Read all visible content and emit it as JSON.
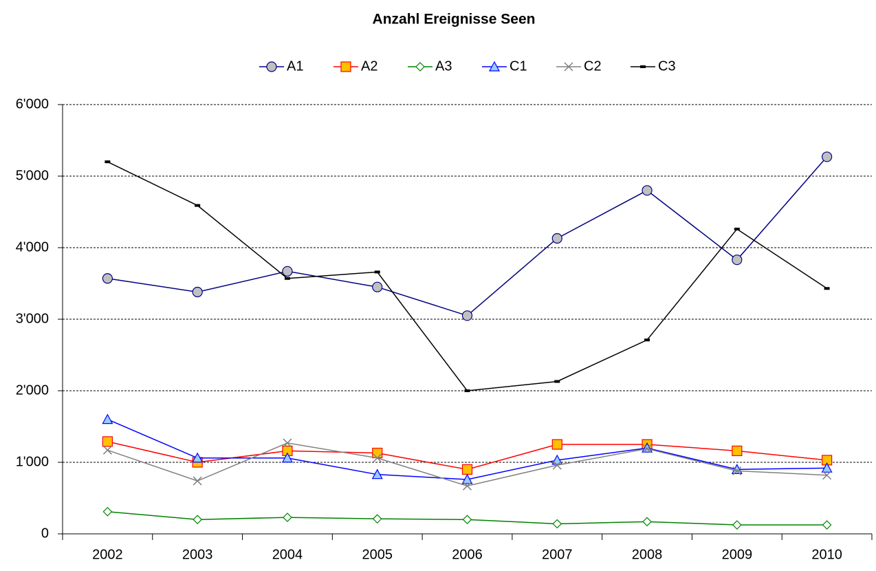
{
  "chart_data": {
    "type": "line",
    "title": "Anzahl Ereignisse Seen",
    "categories": [
      "2002",
      "2003",
      "2004",
      "2005",
      "2006",
      "2007",
      "2008",
      "2009",
      "2010"
    ],
    "series": [
      {
        "name": "A1",
        "color": "#000080",
        "marker": "circle",
        "values": [
          3570,
          3380,
          3670,
          3450,
          3050,
          4130,
          4800,
          3830,
          5270
        ]
      },
      {
        "name": "A2",
        "color": "#ff0000",
        "marker": "square",
        "values": [
          1290,
          1000,
          1160,
          1130,
          900,
          1250,
          1250,
          1160,
          1030
        ]
      },
      {
        "name": "A3",
        "color": "#008000",
        "marker": "diamond",
        "values": [
          310,
          200,
          230,
          210,
          200,
          140,
          170,
          125,
          125
        ]
      },
      {
        "name": "C1",
        "color": "#0000ff",
        "marker": "triangle",
        "values": [
          1600,
          1060,
          1060,
          830,
          760,
          1030,
          1200,
          900,
          920
        ]
      },
      {
        "name": "C2",
        "color": "#808080",
        "marker": "x",
        "values": [
          1170,
          740,
          1270,
          1060,
          670,
          960,
          1190,
          880,
          820
        ]
      },
      {
        "name": "C3",
        "color": "#000000",
        "marker": "dash",
        "values": [
          5200,
          4590,
          3570,
          3660,
          2000,
          2130,
          2710,
          4260,
          3430
        ]
      }
    ],
    "ylim": [
      0,
      6000
    ],
    "yticks": [
      0,
      {
        "value": 1000,
        "label": "1'000"
      },
      {
        "value": 2000,
        "label": "2'000"
      },
      {
        "value": 3000,
        "label": "3'000"
      },
      {
        "value": 4000,
        "label": "4'000"
      },
      {
        "value": 5000,
        "label": "5'000"
      },
      {
        "value": 6000,
        "label": "6'000"
      }
    ],
    "grid": true,
    "legend": "top"
  }
}
